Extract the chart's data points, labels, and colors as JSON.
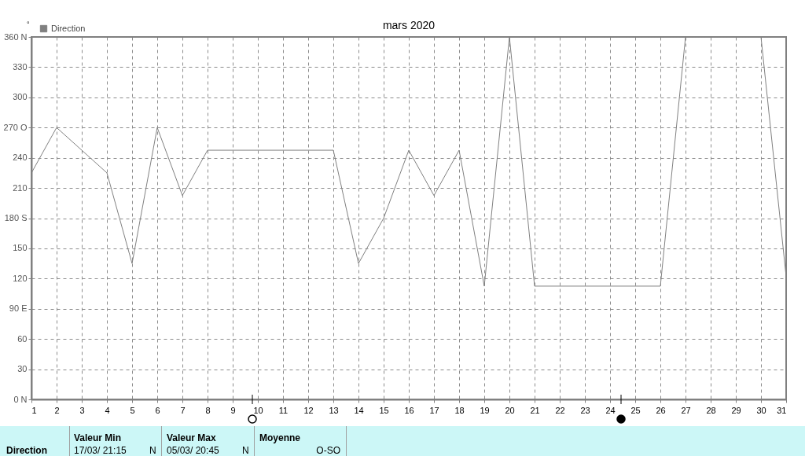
{
  "chart_data": {
    "type": "line",
    "title": "mars 2020",
    "ylabel": "°",
    "x": [
      1,
      2,
      3,
      4,
      5,
      6,
      7,
      8,
      9,
      10,
      11,
      12,
      13,
      14,
      15,
      16,
      17,
      18,
      19,
      20,
      21,
      22,
      23,
      24,
      25,
      26,
      27,
      28,
      29,
      30,
      31
    ],
    "series": [
      {
        "name": "Direction",
        "color": "#808080",
        "values": [
          225,
          270,
          247.5,
          225,
          135,
          270,
          202.5,
          247.5,
          247.5,
          247.5,
          247.5,
          247.5,
          247.5,
          135,
          180,
          247.5,
          202.5,
          247.5,
          112.5,
          360,
          112.5,
          112.5,
          112.5,
          112.5,
          112.5,
          112.5,
          360,
          360,
          360,
          360,
          122
        ]
      }
    ],
    "xlim": [
      1,
      31
    ],
    "xticks": [
      1,
      2,
      3,
      4,
      5,
      6,
      7,
      8,
      9,
      10,
      11,
      12,
      13,
      14,
      15,
      16,
      17,
      18,
      19,
      20,
      21,
      22,
      23,
      24,
      25,
      26,
      27,
      28,
      29,
      30,
      31
    ],
    "ylim": [
      0,
      360
    ],
    "yticks": [
      {
        "value": 0,
        "label": "0  N"
      },
      30,
      60,
      {
        "value": 90,
        "label": "90  E"
      },
      120,
      150,
      {
        "value": 180,
        "label": "180 S"
      },
      210,
      240,
      {
        "value": 270,
        "label": "270 O"
      },
      300,
      330,
      {
        "value": 360,
        "label": "360 N"
      }
    ],
    "grid": true,
    "legend": "top left",
    "marker": "none",
    "line_style": "solid",
    "annotations": [
      "Direction",
      "Valeur Min",
      "17/03/  21:15",
      "N",
      "Valeur Max",
      "05/03/  20:45",
      "N",
      "Moyenne",
      "O-SO"
    ]
  }
}
